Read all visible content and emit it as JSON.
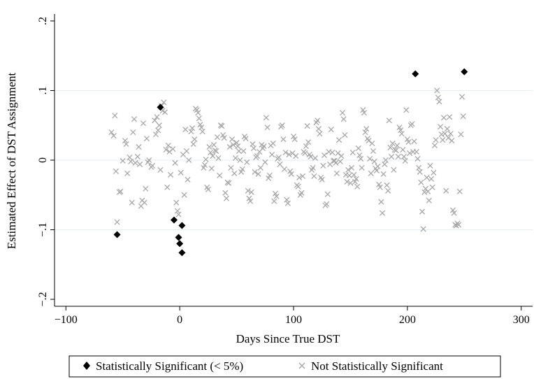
{
  "chart_data": {
    "type": "scatter",
    "title": "",
    "xlabel": "Days Since True DST",
    "ylabel": "Estimated Effect of DST Assignment",
    "xlim": [
      -110,
      310
    ],
    "ylim": [
      -0.21,
      0.21
    ],
    "xticks": [
      -100,
      0,
      100,
      200,
      300
    ],
    "xtick_labels": [
      "−100",
      "0",
      "100",
      "200",
      "300"
    ],
    "yticks": [
      -0.2,
      -0.1,
      0,
      0.1,
      0.2
    ],
    "ytick_labels": [
      "−.2",
      "−.1",
      "0",
      ".1",
      ".2"
    ],
    "gridlines_y": [
      -0.1,
      0,
      0.1
    ],
    "legend_position": "bottom",
    "series": [
      {
        "name": "Statistically Significant (< 5%)",
        "marker": "diamond",
        "color": "#000000",
        "points": [
          [
            -55,
            -0.107
          ],
          [
            -17,
            0.076
          ],
          [
            -5,
            -0.086
          ],
          [
            2,
            -0.094
          ],
          [
            -1,
            -0.111
          ],
          [
            0,
            -0.12
          ],
          [
            2,
            -0.133
          ],
          [
            207,
            0.124
          ],
          [
            250,
            0.127
          ]
        ]
      },
      {
        "name": "Not Statistically Significant",
        "marker": "x",
        "color": "#a8a8a8",
        "points": [
          [
            -60,
            0.04
          ],
          [
            -58,
            0.035
          ],
          [
            -57,
            0.064
          ],
          [
            -56,
            -0.016
          ],
          [
            -55,
            -0.089
          ],
          [
            -53,
            -0.046
          ],
          [
            -52,
            -0.045
          ],
          [
            -50,
            -0.001
          ],
          [
            -48,
            0.028
          ],
          [
            -47,
            0.023
          ],
          [
            -46,
            -0.019
          ],
          [
            -44,
            0.004
          ],
          [
            -43,
            -0.002
          ],
          [
            -42,
            -0.061
          ],
          [
            -41,
            0.04
          ],
          [
            -40,
            0.059
          ],
          [
            -39,
            -0.004
          ],
          [
            -37,
            0.005
          ],
          [
            -36,
            0.019
          ],
          [
            -35,
            -0.006
          ],
          [
            -34,
            -0.066
          ],
          [
            -33,
            -0.058
          ],
          [
            -32,
            0.053
          ],
          [
            -31,
            -0.061
          ],
          [
            -30,
            -0.041
          ],
          [
            -29,
            0.031
          ],
          [
            -28,
            -0.003
          ],
          [
            -27,
            0.0
          ],
          [
            -25,
            -0.01
          ],
          [
            -24,
            -0.008
          ],
          [
            -22,
            0.057
          ],
          [
            -21,
            0.037
          ],
          [
            -20,
            0.062
          ],
          [
            -19,
            0.043
          ],
          [
            -18,
            0.05
          ],
          [
            -17,
            -0.014
          ],
          [
            -16,
            0.078
          ],
          [
            -15,
            0.071
          ],
          [
            -14,
            0.083
          ],
          [
            -13,
            0.069
          ],
          [
            -12,
            0.015
          ],
          [
            -11,
            -0.039
          ],
          [
            -10,
            0.021
          ],
          [
            -9,
            0.012
          ],
          [
            -8,
            -0.021
          ],
          [
            -6,
            0.016
          ],
          [
            -4,
            -0.004
          ],
          [
            -3,
            -0.061
          ],
          [
            -2,
            -0.073
          ],
          [
            -1,
            -0.078
          ],
          [
            1,
            -0.018
          ],
          [
            3,
            0.008
          ],
          [
            4,
            -0.05
          ],
          [
            5,
            0.044
          ],
          [
            6,
            0.013
          ],
          [
            7,
            -0.028
          ],
          [
            8,
            0.0
          ],
          [
            10,
            0.041
          ],
          [
            11,
            0.046
          ],
          [
            12,
            0.023
          ],
          [
            13,
            0.03
          ],
          [
            14,
            0.074
          ],
          [
            15,
            0.072
          ],
          [
            16,
            0.068
          ],
          [
            17,
            0.06
          ],
          [
            18,
            0.051
          ],
          [
            19,
            0.047
          ],
          [
            20,
            0.041
          ],
          [
            21,
            -0.011
          ],
          [
            22,
            -0.007
          ],
          [
            23,
            0.001
          ],
          [
            24,
            -0.039
          ],
          [
            25,
            -0.042
          ],
          [
            26,
            0.019
          ],
          [
            27,
            0.011
          ],
          [
            28,
            -0.012
          ],
          [
            29,
            0.006
          ],
          [
            30,
            0.022
          ],
          [
            31,
            0.014
          ],
          [
            32,
            0.013
          ],
          [
            33,
            0.033
          ],
          [
            34,
            0.003
          ],
          [
            35,
            -0.022
          ],
          [
            36,
            0.05
          ],
          [
            37,
            0.049
          ],
          [
            38,
            0.036
          ],
          [
            39,
            0.032
          ],
          [
            40,
            -0.047
          ],
          [
            41,
            -0.055
          ],
          [
            42,
            -0.032
          ],
          [
            43,
            -0.033
          ],
          [
            44,
            0.019
          ],
          [
            45,
            -0.011
          ],
          [
            46,
            0.03
          ],
          [
            47,
            0.022
          ],
          [
            48,
            -0.019
          ],
          [
            49,
            0.003
          ],
          [
            50,
            0.025
          ],
          [
            51,
            0.02
          ],
          [
            52,
            0.013
          ],
          [
            53,
            0.0
          ],
          [
            54,
            -0.017
          ],
          [
            55,
            -0.013
          ],
          [
            56,
            0.013
          ],
          [
            57,
            0.034
          ],
          [
            58,
            0.031
          ],
          [
            59,
            -0.003
          ],
          [
            60,
            -0.044
          ],
          [
            61,
            -0.055
          ],
          [
            62,
            -0.059
          ],
          [
            63,
            -0.046
          ],
          [
            64,
            0.023
          ],
          [
            65,
            0.017
          ],
          [
            66,
            -0.017
          ],
          [
            67,
            0.004
          ],
          [
            68,
            0.006
          ],
          [
            69,
            -0.02
          ],
          [
            70,
            0.012
          ],
          [
            71,
            -0.011
          ],
          [
            72,
            0.022
          ],
          [
            73,
            0.017
          ],
          [
            74,
            0.02
          ],
          [
            75,
            -0.003
          ],
          [
            76,
            0.061
          ],
          [
            77,
            0.047
          ],
          [
            78,
            -0.026
          ],
          [
            79,
            -0.022
          ],
          [
            80,
            0.021
          ],
          [
            81,
            0.008
          ],
          [
            82,
            0.024
          ],
          [
            83,
            -0.059
          ],
          [
            84,
            -0.048
          ],
          [
            85,
            -0.052
          ],
          [
            86,
            0.002
          ],
          [
            87,
            0.004
          ],
          [
            88,
            -0.006
          ],
          [
            89,
            0.048
          ],
          [
            90,
            0.05
          ],
          [
            91,
            0.03
          ],
          [
            92,
            -0.013
          ],
          [
            93,
            0.011
          ],
          [
            94,
            -0.057
          ],
          [
            95,
            -0.062
          ],
          [
            96,
            0.008
          ],
          [
            97,
            -0.016
          ],
          [
            98,
            -0.02
          ],
          [
            99,
            0.01
          ],
          [
            100,
            0.034
          ],
          [
            101,
            0.03
          ],
          [
            102,
            0.006
          ],
          [
            103,
            -0.036
          ],
          [
            104,
            -0.038
          ],
          [
            105,
            -0.025
          ],
          [
            106,
            -0.05
          ],
          [
            107,
            -0.047
          ],
          [
            108,
            -0.023
          ],
          [
            109,
            0.012
          ],
          [
            110,
            0.01
          ],
          [
            111,
            0.02
          ],
          [
            112,
            0.049
          ],
          [
            113,
            0.026
          ],
          [
            114,
            0.008
          ],
          [
            115,
            0.005
          ],
          [
            116,
            -0.014
          ],
          [
            117,
            -0.011
          ],
          [
            118,
            -0.023
          ],
          [
            119,
            0.003
          ],
          [
            120,
            0.054
          ],
          [
            121,
            0.057
          ],
          [
            122,
            0.045
          ],
          [
            123,
            0.038
          ],
          [
            124,
            -0.025
          ],
          [
            125,
            -0.028
          ],
          [
            126,
            -0.008
          ],
          [
            127,
            0.007
          ],
          [
            128,
            -0.065
          ],
          [
            129,
            -0.063
          ],
          [
            130,
            -0.049
          ],
          [
            131,
            0.012
          ],
          [
            132,
            -0.006
          ],
          [
            133,
            0.044
          ],
          [
            134,
            0.011
          ],
          [
            135,
            -0.001
          ],
          [
            136,
            -0.001
          ],
          [
            137,
            -0.004
          ],
          [
            138,
            -0.019
          ],
          [
            139,
            0.01
          ],
          [
            140,
            0.029
          ],
          [
            141,
            -0.002
          ],
          [
            142,
            0.006
          ],
          [
            143,
            0.068
          ],
          [
            144,
            0.059
          ],
          [
            145,
            0.036
          ],
          [
            146,
            -0.021
          ],
          [
            147,
            -0.031
          ],
          [
            148,
            -0.014
          ],
          [
            149,
            -0.022
          ],
          [
            150,
            -0.033
          ],
          [
            151,
            -0.011
          ],
          [
            152,
            0.011
          ],
          [
            153,
            -0.021
          ],
          [
            154,
            -0.031
          ],
          [
            155,
            -0.027
          ],
          [
            156,
            -0.038
          ],
          [
            157,
            0.017
          ],
          [
            158,
            0.007
          ],
          [
            159,
            0.002
          ],
          [
            160,
            -0.011
          ],
          [
            161,
            0.072
          ],
          [
            162,
            0.068
          ],
          [
            163,
            0.04
          ],
          [
            164,
            0.045
          ],
          [
            165,
            0.031
          ],
          [
            166,
            0.028
          ],
          [
            167,
            0.002
          ],
          [
            168,
            -0.019
          ],
          [
            169,
            0.024
          ],
          [
            170,
            0.013
          ],
          [
            171,
            -0.002
          ],
          [
            172,
            -0.012
          ],
          [
            173,
            -0.015
          ],
          [
            174,
            -0.009
          ],
          [
            175,
            -0.035
          ],
          [
            176,
            -0.039
          ],
          [
            177,
            -0.06
          ],
          [
            178,
            -0.076
          ],
          [
            179,
            -0.02
          ],
          [
            180,
            -0.006
          ],
          [
            181,
            0.0
          ],
          [
            182,
            -0.036
          ],
          [
            183,
            -0.044
          ],
          [
            184,
            0.057
          ],
          [
            185,
            0.018
          ],
          [
            186,
            0.005
          ],
          [
            187,
            0.024
          ],
          [
            188,
            -0.014
          ],
          [
            189,
            0.015
          ],
          [
            190,
            0.014
          ],
          [
            191,
            0.021
          ],
          [
            192,
            0.005
          ],
          [
            193,
            0.047
          ],
          [
            194,
            0.043
          ],
          [
            195,
            0.038
          ],
          [
            196,
            0.015
          ],
          [
            197,
            0.005
          ],
          [
            198,
            -0.001
          ],
          [
            199,
            0.072
          ],
          [
            200,
            0.03
          ],
          [
            201,
            0.026
          ],
          [
            202,
            0.01
          ],
          [
            203,
            0.05
          ],
          [
            204,
            0.052
          ],
          [
            205,
            0.012
          ],
          [
            206,
            0.027
          ],
          [
            208,
            0.012
          ],
          [
            209,
            0.002
          ],
          [
            210,
            -0.011
          ],
          [
            211,
            -0.017
          ],
          [
            212,
            -0.032
          ],
          [
            213,
            -0.074
          ],
          [
            214,
            -0.099
          ],
          [
            215,
            -0.046
          ],
          [
            216,
            -0.041
          ],
          [
            217,
            -0.025
          ],
          [
            218,
            -0.045
          ],
          [
            219,
            -0.058
          ],
          [
            220,
            -0.008
          ],
          [
            221,
            -0.027
          ],
          [
            222,
            -0.039
          ],
          [
            223,
            -0.018
          ],
          [
            224,
            0.021
          ],
          [
            225,
            0.029
          ],
          [
            226,
            0.1
          ],
          [
            227,
            0.09
          ],
          [
            228,
            0.084
          ],
          [
            229,
            0.048
          ],
          [
            230,
            0.037
          ],
          [
            231,
            0.029
          ],
          [
            232,
            0.061
          ],
          [
            233,
            0.038
          ],
          [
            234,
            -0.044
          ],
          [
            235,
            0.045
          ],
          [
            236,
            0.032
          ],
          [
            237,
            0.062
          ],
          [
            238,
            0.038
          ],
          [
            239,
            0.028
          ],
          [
            240,
            -0.072
          ],
          [
            241,
            -0.076
          ],
          [
            242,
            -0.093
          ],
          [
            243,
            -0.094
          ],
          [
            244,
            -0.091
          ],
          [
            245,
            -0.093
          ],
          [
            246,
            -0.045
          ],
          [
            247,
            0.037
          ],
          [
            248,
            0.091
          ],
          [
            249,
            0.063
          ]
        ]
      }
    ]
  }
}
